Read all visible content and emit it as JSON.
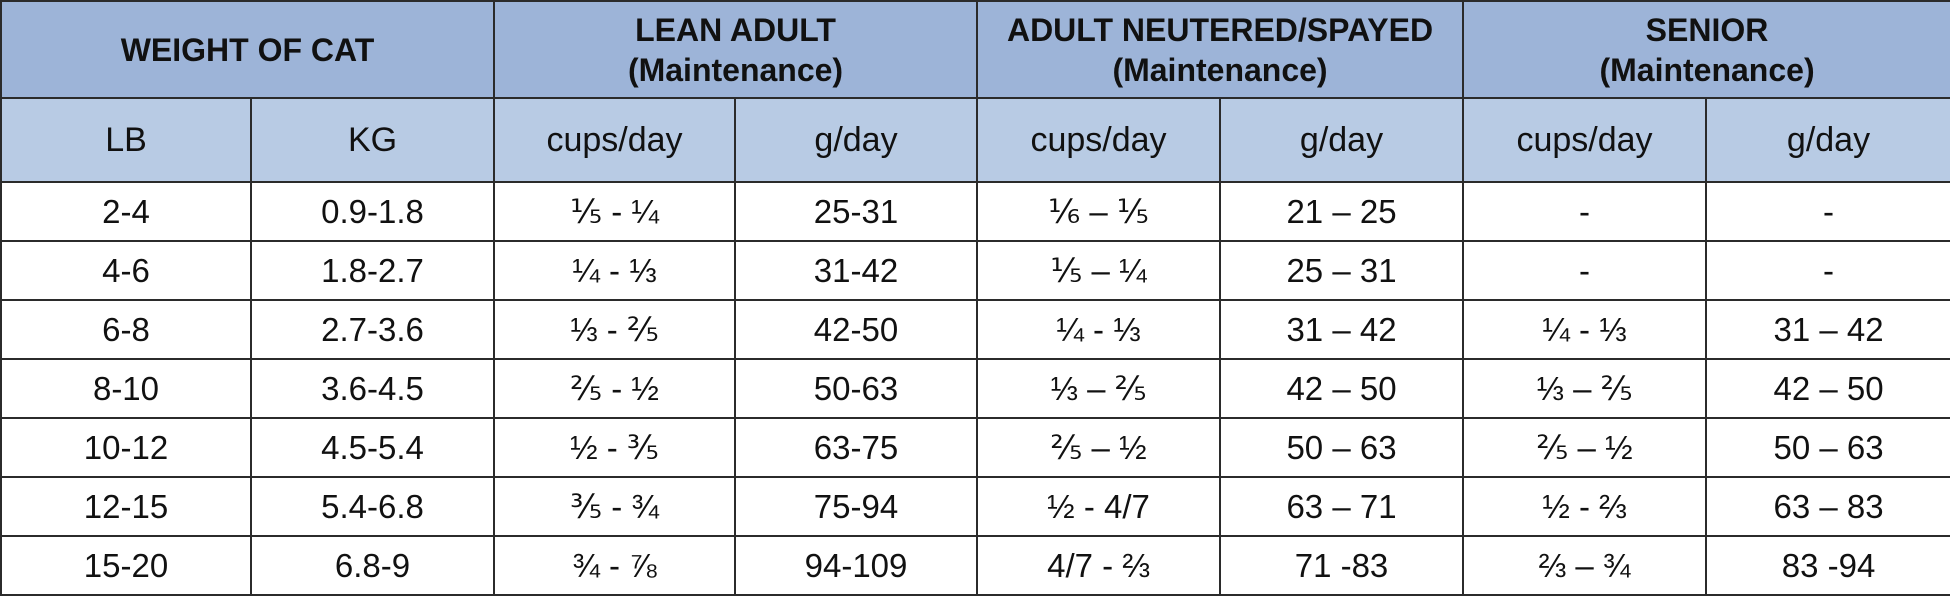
{
  "table": {
    "groups": [
      {
        "title": "WEIGHT OF CAT",
        "subtitle": ""
      },
      {
        "title": "LEAN ADULT",
        "subtitle": "(Maintenance)"
      },
      {
        "title": "ADULT NEUTERED/SPAYED",
        "subtitle": "(Maintenance)"
      },
      {
        "title": "SENIOR",
        "subtitle": "(Maintenance)"
      }
    ],
    "columns": [
      "LB",
      "KG",
      "cups/day",
      "g/day",
      "cups/day",
      "g/day",
      "cups/day",
      "g/day"
    ],
    "rows": [
      [
        "2-4",
        "0.9-1.8",
        "⅕ - ¼",
        "25-31",
        "⅙ – ⅕",
        "21 – 25",
        "-",
        "-"
      ],
      [
        "4-6",
        "1.8-2.7",
        "¼ - ⅓",
        "31-42",
        "⅕ – ¼",
        "25 – 31",
        "-",
        "-"
      ],
      [
        "6-8",
        "2.7-3.6",
        "⅓ - ⅖",
        "42-50",
        "¼ - ⅓",
        "31 – 42",
        "¼ - ⅓",
        "31 – 42"
      ],
      [
        "8-10",
        "3.6-4.5",
        "⅖ - ½",
        "50-63",
        "⅓ – ⅖",
        "42 – 50",
        "⅓ – ⅖",
        "42 – 50"
      ],
      [
        "10-12",
        "4.5-5.4",
        "½ - ⅗",
        "63-75",
        "⅖ – ½",
        "50 – 63",
        "⅖ – ½",
        "50 – 63"
      ],
      [
        "12-15",
        "5.4-6.8",
        "⅗ - ¾",
        "75-94",
        "½ - 4/7",
        "63 – 71",
        "½ - ⅔",
        "63 – 83"
      ],
      [
        "15-20",
        "6.8-9",
        "¾ - ⅞",
        "94-109",
        "4/7 - ⅔",
        "71 -83",
        "⅔ – ¾",
        "83 -94"
      ]
    ]
  }
}
